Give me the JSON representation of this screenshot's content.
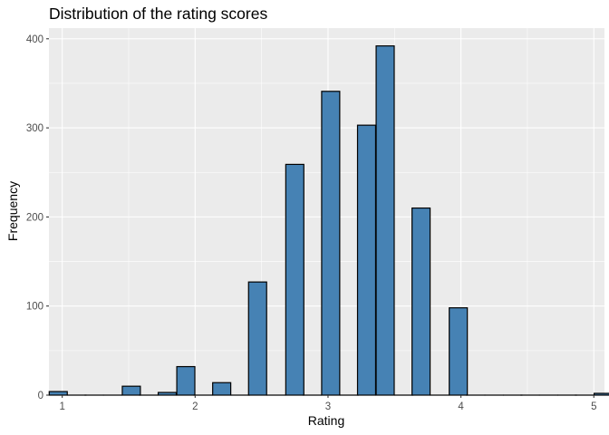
{
  "chart_data": {
    "type": "bar",
    "title": "Distribution of the rating scores",
    "xlabel": "Rating",
    "ylabel": "Frequency",
    "xlim": [
      0.9,
      5.08
    ],
    "ylim": [
      0,
      412
    ],
    "x_ticks": [
      1,
      2,
      3,
      4,
      5
    ],
    "y_ticks": [
      0,
      100,
      200,
      300,
      400
    ],
    "grid": true,
    "bin_width": 0.136,
    "bins": [
      {
        "x": 0.97,
        "count": 4
      },
      {
        "x": 1.11,
        "count": 0
      },
      {
        "x": 1.24,
        "count": 0
      },
      {
        "x": 1.38,
        "count": 0
      },
      {
        "x": 1.52,
        "count": 10
      },
      {
        "x": 1.65,
        "count": 0
      },
      {
        "x": 1.79,
        "count": 3
      },
      {
        "x": 1.93,
        "count": 32
      },
      {
        "x": 2.06,
        "count": 0
      },
      {
        "x": 2.2,
        "count": 14
      },
      {
        "x": 2.34,
        "count": 0
      },
      {
        "x": 2.47,
        "count": 127
      },
      {
        "x": 2.61,
        "count": 0
      },
      {
        "x": 2.75,
        "count": 259
      },
      {
        "x": 2.88,
        "count": 0
      },
      {
        "x": 3.02,
        "count": 341
      },
      {
        "x": 3.16,
        "count": 0
      },
      {
        "x": 3.29,
        "count": 303
      },
      {
        "x": 3.43,
        "count": 392
      },
      {
        "x": 3.57,
        "count": 0
      },
      {
        "x": 3.7,
        "count": 210
      },
      {
        "x": 3.84,
        "count": 0
      },
      {
        "x": 3.98,
        "count": 98
      },
      {
        "x": 4.11,
        "count": 0
      },
      {
        "x": 4.25,
        "count": 0
      },
      {
        "x": 4.39,
        "count": 0
      },
      {
        "x": 4.52,
        "count": 0
      },
      {
        "x": 4.66,
        "count": 0
      },
      {
        "x": 4.8,
        "count": 0
      },
      {
        "x": 4.93,
        "count": 0
      },
      {
        "x": 5.07,
        "count": 2
      }
    ],
    "colors": {
      "fill": "#4682b4",
      "stroke": "#000000",
      "panel": "#ebebeb",
      "grid": "#ffffff"
    }
  }
}
